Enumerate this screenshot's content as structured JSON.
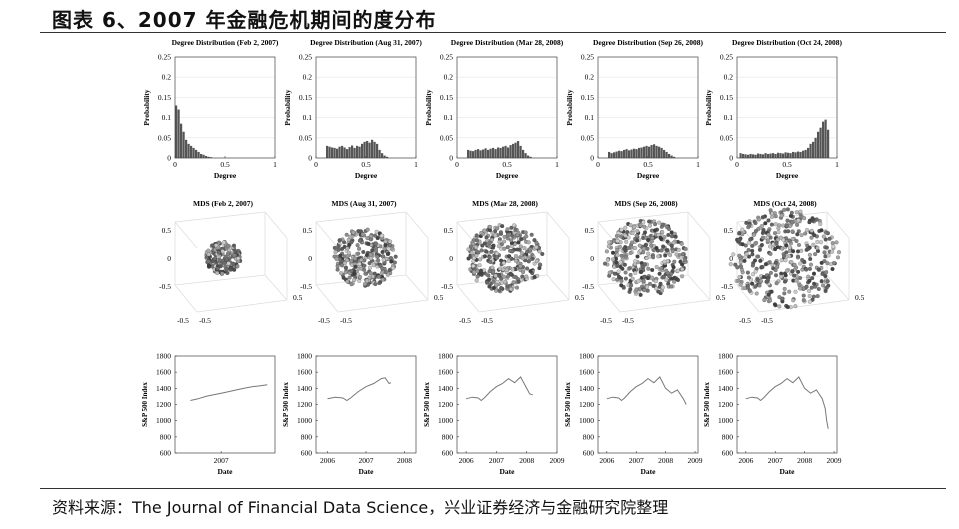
{
  "header": {
    "title": "图表 6、2007 年金融危机期间的度分布",
    "source": "资料来源：The Journal of Financial Data Science，兴业证券经济与金融研究院整理"
  },
  "chart_data": [
    {
      "row": "degree",
      "type": "bar",
      "xlabel": "Degree",
      "ylabel": "Probability",
      "xlim": [
        0,
        1
      ],
      "ylim": [
        0,
        0.25
      ],
      "xticks": [
        "0",
        "0.5",
        "1"
      ],
      "yticks": [
        "0",
        "0.05",
        "0.1",
        "0.15",
        "0.2",
        "0.25"
      ],
      "bar_color": "#555555",
      "panels": [
        {
          "title": "Degree Distribution (Feb 2, 2007)",
          "bin_width": 0.025,
          "x": [
            0.0125,
            0.0375,
            0.0625,
            0.0875,
            0.1125,
            0.1375,
            0.1625,
            0.1875,
            0.2125,
            0.2375,
            0.2625,
            0.2875,
            0.3125,
            0.3375,
            0.3625
          ],
          "values": [
            0.13,
            0.12,
            0.085,
            0.065,
            0.045,
            0.035,
            0.03,
            0.025,
            0.02,
            0.015,
            0.01,
            0.008,
            0.005,
            0.003,
            0.002
          ]
        },
        {
          "title": "Degree Distribution (Aug 31, 2007)",
          "bin_width": 0.025,
          "x": [
            0.1125,
            0.1375,
            0.1625,
            0.1875,
            0.2125,
            0.2375,
            0.2625,
            0.2875,
            0.3125,
            0.3375,
            0.3625,
            0.3875,
            0.4125,
            0.4375,
            0.4625,
            0.4875,
            0.5125,
            0.5375,
            0.5625,
            0.5875,
            0.6125,
            0.6375,
            0.6625,
            0.6875,
            0.7125
          ],
          "values": [
            0.03,
            0.028,
            0.026,
            0.025,
            0.023,
            0.028,
            0.03,
            0.026,
            0.022,
            0.027,
            0.031,
            0.025,
            0.03,
            0.028,
            0.035,
            0.04,
            0.042,
            0.038,
            0.045,
            0.04,
            0.035,
            0.02,
            0.012,
            0.006,
            0.003
          ]
        },
        {
          "title": "Degree Distribution (Mar 28, 2008)",
          "bin_width": 0.025,
          "x": [
            0.1125,
            0.1375,
            0.1625,
            0.1875,
            0.2125,
            0.2375,
            0.2625,
            0.2875,
            0.3125,
            0.3375,
            0.3625,
            0.3875,
            0.4125,
            0.4375,
            0.4625,
            0.4875,
            0.5125,
            0.5375,
            0.5625,
            0.5875,
            0.6125,
            0.6375,
            0.6625,
            0.6875,
            0.7125,
            0.7375
          ],
          "values": [
            0.02,
            0.018,
            0.017,
            0.02,
            0.022,
            0.019,
            0.021,
            0.024,
            0.02,
            0.023,
            0.025,
            0.022,
            0.026,
            0.025,
            0.028,
            0.03,
            0.026,
            0.032,
            0.035,
            0.038,
            0.042,
            0.03,
            0.02,
            0.012,
            0.006,
            0.003
          ]
        },
        {
          "title": "Degree Distribution (Sep 26, 2008)",
          "bin_width": 0.025,
          "x": [
            0.1125,
            0.1375,
            0.1625,
            0.1875,
            0.2125,
            0.2375,
            0.2625,
            0.2875,
            0.3125,
            0.3375,
            0.3625,
            0.3875,
            0.4125,
            0.4375,
            0.4625,
            0.4875,
            0.5125,
            0.5375,
            0.5625,
            0.5875,
            0.6125,
            0.6375,
            0.6625,
            0.6875,
            0.7125,
            0.7375,
            0.7625
          ],
          "values": [
            0.015,
            0.012,
            0.014,
            0.016,
            0.018,
            0.017,
            0.02,
            0.022,
            0.019,
            0.021,
            0.023,
            0.022,
            0.025,
            0.026,
            0.028,
            0.03,
            0.028,
            0.032,
            0.034,
            0.03,
            0.028,
            0.025,
            0.02,
            0.015,
            0.01,
            0.006,
            0.003
          ]
        },
        {
          "title": "Degree Distribution (Oct 24, 2008)",
          "bin_width": 0.025,
          "x": [
            0.0375,
            0.0625,
            0.0875,
            0.1125,
            0.1375,
            0.1625,
            0.1875,
            0.2125,
            0.2375,
            0.2625,
            0.2875,
            0.3125,
            0.3375,
            0.3625,
            0.3875,
            0.4125,
            0.4375,
            0.4625,
            0.4875,
            0.5125,
            0.5375,
            0.5625,
            0.5875,
            0.6125,
            0.6375,
            0.6625,
            0.6875,
            0.7125,
            0.7375,
            0.7625,
            0.7875,
            0.8125,
            0.8375,
            0.8625,
            0.8875,
            0.9125
          ],
          "values": [
            0.012,
            0.01,
            0.009,
            0.008,
            0.01,
            0.009,
            0.008,
            0.011,
            0.01,
            0.009,
            0.012,
            0.01,
            0.011,
            0.012,
            0.01,
            0.013,
            0.012,
            0.011,
            0.014,
            0.013,
            0.012,
            0.015,
            0.014,
            0.016,
            0.015,
            0.018,
            0.02,
            0.025,
            0.035,
            0.04,
            0.05,
            0.065,
            0.075,
            0.09,
            0.095,
            0.07
          ]
        }
      ]
    },
    {
      "row": "mds",
      "type": "scatter",
      "projection": "3d",
      "zticks": [
        "0.5",
        "0",
        "-0.5"
      ],
      "xticks": [
        "-0.5",
        "-0.5",
        "0.5"
      ],
      "panels": [
        {
          "title": "MDS (Feb 2, 2007)",
          "spread": 0.18,
          "points": 180
        },
        {
          "title": "MDS (Aug 31, 2007)",
          "spread": 0.32,
          "points": 280
        },
        {
          "title": "MDS (Mar 28, 2008)",
          "spread": 0.38,
          "points": 340
        },
        {
          "title": "MDS (Sep 26, 2008)",
          "spread": 0.42,
          "points": 360
        },
        {
          "title": "MDS (Oct 24, 2008)",
          "spread": 0.55,
          "points": 420
        }
      ]
    },
    {
      "row": "sp500",
      "type": "line",
      "xlabel": "Date",
      "ylabel": "S&P 500 Index",
      "ylim": [
        600,
        1800
      ],
      "yticks": [
        "1800",
        "1600",
        "1400",
        "1200",
        "1000",
        "800",
        "600"
      ],
      "line_color": "#777777",
      "panels": [
        {
          "xlim": [
            2006.7,
            2007.35
          ],
          "xticks": [
            "2007"
          ],
          "xtick_values": [
            2007
          ],
          "x": [
            2006.8,
            2006.85,
            2006.9,
            2006.95,
            2007.0,
            2007.05,
            2007.1,
            2007.15,
            2007.2,
            2007.25,
            2007.3
          ],
          "values": [
            1250,
            1270,
            1300,
            1320,
            1340,
            1360,
            1380,
            1400,
            1420,
            1430,
            1445
          ]
        },
        {
          "xlim": [
            2005.7,
            2008.3
          ],
          "xticks": [
            "2006",
            "2007",
            "2008"
          ],
          "xtick_values": [
            2006,
            2007,
            2008
          ],
          "x": [
            2006.0,
            2006.2,
            2006.4,
            2006.5,
            2006.6,
            2006.8,
            2007.0,
            2007.2,
            2007.4,
            2007.5,
            2007.6,
            2007.65
          ],
          "values": [
            1270,
            1290,
            1280,
            1250,
            1280,
            1360,
            1420,
            1460,
            1520,
            1530,
            1460,
            1470
          ]
        },
        {
          "xlim": [
            2005.7,
            2009.0
          ],
          "xticks": [
            "2006",
            "2007",
            "2008",
            "2009"
          ],
          "xtick_values": [
            2006,
            2007,
            2008,
            2009
          ],
          "x": [
            2006.0,
            2006.2,
            2006.4,
            2006.5,
            2006.6,
            2006.8,
            2007.0,
            2007.2,
            2007.4,
            2007.6,
            2007.8,
            2008.0,
            2008.1,
            2008.2
          ],
          "values": [
            1270,
            1290,
            1280,
            1250,
            1280,
            1360,
            1420,
            1460,
            1520,
            1470,
            1540,
            1400,
            1330,
            1320
          ]
        },
        {
          "xlim": [
            2005.7,
            2009.1
          ],
          "xticks": [
            "2006",
            "2007",
            "2008",
            "2009"
          ],
          "xtick_values": [
            2006,
            2007,
            2008,
            2009
          ],
          "x": [
            2006.0,
            2006.2,
            2006.4,
            2006.5,
            2006.6,
            2006.8,
            2007.0,
            2007.2,
            2007.4,
            2007.6,
            2007.8,
            2008.0,
            2008.2,
            2008.4,
            2008.6,
            2008.7
          ],
          "values": [
            1270,
            1290,
            1280,
            1250,
            1280,
            1360,
            1420,
            1460,
            1520,
            1470,
            1540,
            1400,
            1340,
            1380,
            1270,
            1200
          ]
        },
        {
          "xlim": [
            2005.7,
            2009.1
          ],
          "xticks": [
            "2006",
            "2007",
            "2008",
            "2009"
          ],
          "xtick_values": [
            2006,
            2007,
            2008,
            2009
          ],
          "x": [
            2006.0,
            2006.2,
            2006.4,
            2006.5,
            2006.6,
            2006.8,
            2007.0,
            2007.2,
            2007.4,
            2007.6,
            2007.8,
            2008.0,
            2008.2,
            2008.4,
            2008.6,
            2008.7,
            2008.75,
            2008.8
          ],
          "values": [
            1270,
            1290,
            1280,
            1250,
            1280,
            1360,
            1420,
            1460,
            1520,
            1470,
            1540,
            1400,
            1340,
            1380,
            1270,
            1150,
            1000,
            900
          ]
        }
      ]
    }
  ]
}
